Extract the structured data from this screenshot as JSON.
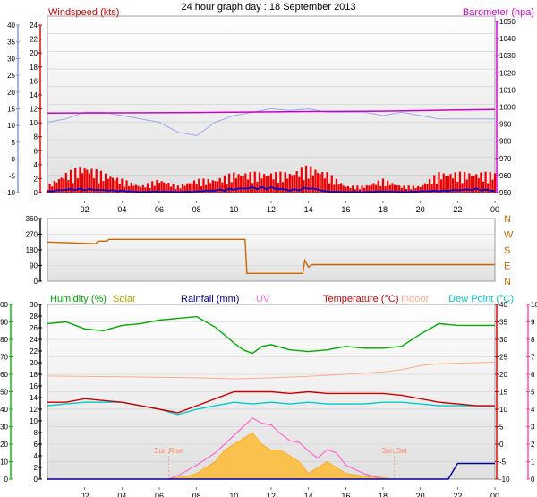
{
  "title": "24 hour graph day : 18 September 2013",
  "colors": {
    "wind": "#cc0000",
    "gust": "#ee0000",
    "avg": "#0000cc",
    "baro": "#cc00cc",
    "temp_outdoor_faint": "#9aa8f0",
    "dir": "#cc6600",
    "humidity": "#00aa00",
    "solar": "#b8a000",
    "rainfall": "#000099",
    "uv": "#ff66cc",
    "temperature": "#cc0000",
    "indoor": "#ffaa88",
    "dewpoint": "#00cccc",
    "axis_blue": "#7a94e8",
    "axis_magenta": "#cc00cc",
    "axis_green": "#00bb00",
    "axis_black": "#000000",
    "axis_pink": "#ff4499",
    "sun_fill": "#ffbb33",
    "sun_line": "#ff66cc"
  },
  "time_ticks": [
    "02",
    "04",
    "06",
    "08",
    "10",
    "12",
    "14",
    "16",
    "18",
    "20",
    "22",
    "00"
  ],
  "sun_set_tick": "Sun Set",
  "chart_data": [
    {
      "type": "line",
      "panel": "wind-pressure",
      "labels": {
        "wind": "Windspeed (kts)",
        "baro": "Barometer (hpa)"
      },
      "y_left_outer": {
        "ticks": [
          40,
          35,
          30,
          25,
          20,
          15,
          10,
          5,
          0,
          -5,
          -10
        ],
        "ylim": [
          -10,
          40
        ]
      },
      "y_left_inner": {
        "ticks": [
          24,
          22,
          20,
          18,
          16,
          14,
          12,
          10,
          8,
          6,
          4,
          2,
          0
        ],
        "ylim": [
          0,
          24
        ]
      },
      "y_right": {
        "ticks": [
          1050,
          1040,
          1030,
          1020,
          1010,
          1000,
          990,
          980,
          970,
          960,
          950
        ],
        "ylim": [
          950,
          1050
        ]
      },
      "series": [
        {
          "name": "Barometer (hpa)",
          "x": [
            0,
            4,
            8,
            10,
            14,
            18,
            20,
            22,
            24
          ],
          "values": [
            996.5,
            996.6,
            996.8,
            997,
            997.4,
            997.6,
            997.9,
            998.3,
            998.6
          ]
        },
        {
          "name": "Outdoor temperature",
          "x": [
            0,
            1,
            2,
            3,
            4,
            5,
            6,
            7,
            8,
            9,
            10,
            11,
            12,
            13,
            14,
            15,
            16,
            17,
            18,
            19,
            20,
            21,
            22,
            23,
            24
          ],
          "values": [
            11,
            12,
            14,
            14,
            13,
            12,
            11,
            8,
            7,
            11,
            13,
            14,
            15,
            14.5,
            15,
            14,
            14,
            14,
            13,
            14,
            13,
            12,
            12,
            12,
            12
          ]
        },
        {
          "name": "Wind average",
          "x": [
            0,
            1,
            2,
            3,
            4,
            5,
            6,
            7,
            8,
            9,
            10,
            11,
            12,
            13,
            14,
            15,
            16,
            17,
            18,
            19,
            20,
            21,
            22,
            23,
            24
          ],
          "values": [
            0.2,
            0.5,
            0.6,
            0.4,
            0.3,
            0.1,
            0.2,
            0.1,
            0.2,
            0.4,
            0.6,
            0.8,
            0.8,
            0.4,
            0.8,
            0.2,
            0.1,
            0.1,
            0.2,
            0.1,
            0.2,
            0.3,
            0.4,
            0.6,
            0.3
          ]
        },
        {
          "name": "Wind gust",
          "x": [
            0,
            1,
            2,
            3,
            4,
            5,
            6,
            7,
            8,
            9,
            10,
            11,
            12,
            13,
            14,
            15,
            16,
            17,
            18,
            19,
            20,
            21,
            22,
            23,
            24
          ],
          "values": [
            1,
            3,
            4,
            3,
            2,
            1,
            2,
            1,
            2,
            2,
            3,
            3,
            3,
            3,
            4,
            3,
            1,
            1,
            2,
            1,
            1,
            3,
            3,
            3,
            3
          ]
        }
      ]
    },
    {
      "type": "line",
      "panel": "wind-direction",
      "y_left": {
        "ticks": [
          360,
          270,
          180,
          90,
          0
        ],
        "ylim": [
          0,
          360
        ]
      },
      "y_right": {
        "ticks": [
          "N",
          "W",
          "S",
          "E",
          "N"
        ]
      },
      "series": [
        {
          "name": "Wind direction",
          "x": [
            0,
            2.6,
            2.7,
            3.2,
            3.3,
            10.6,
            10.7,
            13.7,
            13.8,
            14,
            14.2,
            24
          ],
          "values": [
            225,
            215,
            230,
            230,
            240,
            240,
            45,
            45,
            120,
            80,
            95,
            95
          ]
        }
      ]
    },
    {
      "type": "line",
      "panel": "weather",
      "labels": {
        "humidity": "Humidity (%)",
        "solar": "Solar",
        "rainfall": "Rainfall (mm)",
        "uv": "UV",
        "temperature": "Temperature (°C)",
        "indoor": "Indoor",
        "dewpoint": "Dew Point (°C)"
      },
      "annotations": [
        "Sun Rise",
        "Sun Set"
      ],
      "y_left_outer": {
        "ticks": [
          100,
          90,
          80,
          70,
          60,
          50,
          40,
          30,
          20,
          10,
          0
        ],
        "ylim": [
          0,
          100
        ]
      },
      "y_left_inner": {
        "ticks": [
          30,
          28,
          26,
          24,
          22,
          20,
          18,
          16,
          14,
          12,
          10,
          8,
          6,
          4,
          2,
          0
        ],
        "ylim": [
          0,
          30
        ]
      },
      "y_right_inner": {
        "ticks": [
          40,
          35,
          30,
          25,
          20,
          15,
          10,
          5,
          0,
          -5,
          -10
        ],
        "ylim": [
          -10,
          40
        ]
      },
      "y_right_outer": {
        "ticks": [
          10,
          9,
          8,
          7,
          6,
          5,
          4,
          3,
          2,
          1,
          0
        ],
        "ylim": [
          0,
          10
        ]
      },
      "series": [
        {
          "name": "Humidity (%)",
          "x": [
            0,
            1,
            2,
            3,
            4,
            5,
            6,
            7,
            8,
            9,
            10,
            10.5,
            11,
            11.5,
            12,
            13,
            14,
            15,
            16,
            17,
            18,
            19,
            20,
            21,
            22,
            23,
            24
          ],
          "values": [
            89,
            90,
            86,
            85,
            88,
            89,
            91,
            92,
            93,
            87,
            78,
            74,
            72,
            76,
            77,
            74,
            73,
            74,
            76,
            75,
            75,
            76,
            83,
            89,
            88,
            88,
            88
          ]
        },
        {
          "name": "Indoor",
          "x": [
            0,
            4,
            8,
            10,
            12,
            14,
            16,
            18,
            19,
            20,
            21,
            24
          ],
          "values": [
            19.5,
            19.3,
            19,
            18.7,
            19,
            19.4,
            20,
            20.7,
            21.3,
            22.5,
            23,
            23.5
          ]
        },
        {
          "name": "Temperature (°C)",
          "x": [
            0,
            1,
            2,
            3,
            4,
            5,
            6,
            7,
            8,
            9,
            10,
            11,
            12,
            13,
            14,
            15,
            16,
            17,
            18,
            19,
            20,
            21,
            22,
            23,
            24
          ],
          "values": [
            12,
            12,
            13,
            12.5,
            12,
            11,
            10,
            9,
            11,
            13,
            15,
            15,
            15,
            14.5,
            15,
            14.5,
            14.5,
            14.5,
            14.5,
            14,
            13,
            12,
            11.5,
            11,
            11
          ]
        },
        {
          "name": "Dew Point (°C)",
          "x": [
            0,
            1,
            2,
            3,
            4,
            5,
            6,
            7,
            8,
            9,
            10,
            11,
            12,
            13,
            14,
            15,
            16,
            17,
            18,
            19,
            20,
            21,
            22,
            23,
            24
          ],
          "values": [
            11,
            11.5,
            12,
            12,
            12,
            11,
            10,
            8.5,
            10,
            11,
            12,
            11.5,
            12,
            11.5,
            12,
            11.5,
            11.5,
            11.5,
            12,
            12,
            11.5,
            11,
            11,
            11,
            11
          ]
        },
        {
          "name": "Solar",
          "x": [
            6.5,
            7,
            7.5,
            8,
            8.5,
            9,
            9.5,
            10,
            10.5,
            11,
            11.5,
            12,
            12.5,
            13,
            13.5,
            14,
            14.5,
            15,
            15.5,
            16,
            17,
            18,
            18.5
          ],
          "values": [
            0,
            0.3,
            0.5,
            1,
            2,
            3,
            5,
            6,
            7,
            8,
            6,
            5,
            5,
            4,
            3,
            1,
            2,
            3,
            2,
            1,
            0.5,
            0.3,
            0
          ]
        },
        {
          "name": "UV",
          "x": [
            6.5,
            7,
            8,
            9,
            10,
            10.5,
            11,
            11.5,
            12,
            12.5,
            13,
            13.5,
            14,
            14.5,
            15,
            15.5,
            16,
            17,
            18
          ],
          "values": [
            0,
            0.2,
            0.8,
            1.5,
            2.5,
            3,
            3.5,
            3.2,
            3.1,
            2.6,
            2.2,
            2.1,
            1.6,
            1.2,
            1.7,
            1.5,
            0.8,
            0.3,
            0
          ]
        },
        {
          "name": "Rainfall (mm)",
          "x": [
            0,
            21.5,
            22,
            24
          ],
          "values": [
            0,
            0,
            0.3,
            0.3
          ]
        }
      ]
    }
  ]
}
